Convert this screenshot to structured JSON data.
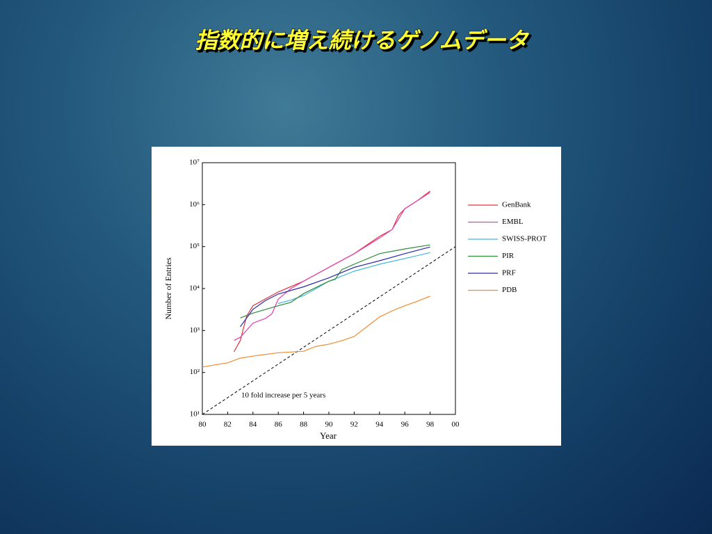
{
  "slide_title": "指数的に増え続けるゲノムデータ",
  "chart_data": {
    "type": "line",
    "x_label": "Year",
    "y_label": "Number of Entries",
    "log_y": true,
    "xlim": [
      80,
      100
    ],
    "xticks": [
      80,
      82,
      84,
      86,
      88,
      90,
      92,
      94,
      96,
      98,
      {
        "value": 100,
        "label": "00"
      }
    ],
    "ylim": [
      10,
      10000000
    ],
    "yticks": [
      {
        "value": 10,
        "label": "10¹"
      },
      {
        "value": 100,
        "label": "10²"
      },
      {
        "value": 1000,
        "label": "10³"
      },
      {
        "value": 10000,
        "label": "10⁴"
      },
      {
        "value": 100000,
        "label": "10⁵"
      },
      {
        "value": 1000000,
        "label": "10⁶"
      },
      {
        "value": 10000000,
        "label": "10⁷"
      }
    ],
    "legend": "right",
    "series": [
      {
        "name": "GenBank",
        "color": "#e0303a",
        "x": [
          82.5,
          83,
          83.5,
          84,
          86,
          88,
          90,
          92,
          94,
          95,
          95.5,
          96,
          97,
          98
        ],
        "values": [
          310,
          580,
          2200,
          3900,
          8300,
          15000,
          32000,
          68000,
          175000,
          255000,
          550000,
          800000,
          1250000,
          2100000
        ]
      },
      {
        "name": "EMBL",
        "color": "#e040b0",
        "x": [
          82.5,
          83,
          84,
          85,
          85.5,
          86,
          87,
          88,
          90,
          92,
          94,
          95,
          96,
          98
        ],
        "values": [
          580,
          690,
          1500,
          1950,
          2500,
          5600,
          10000,
          15000,
          32000,
          68000,
          160000,
          255000,
          800000,
          1950000
        ]
      },
      {
        "name": "SWISS-PROT",
        "color": "#40b8e0",
        "x": [
          86,
          87,
          88,
          89,
          90,
          92,
          94,
          96,
          98
        ],
        "values": [
          4400,
          5300,
          6800,
          10000,
          15000,
          26000,
          38000,
          52000,
          72000
        ]
      },
      {
        "name": "PIR",
        "color": "#2e8b3a",
        "x": [
          83,
          84,
          86,
          87,
          88,
          90,
          90.5,
          91,
          92,
          94,
          96,
          98
        ],
        "values": [
          2000,
          2600,
          3900,
          4700,
          7600,
          15000,
          16600,
          28000,
          38000,
          68000,
          88000,
          110000
        ]
      },
      {
        "name": "PRF",
        "color": "#2a2aa8",
        "x": [
          83,
          84,
          85,
          86,
          88,
          90,
          92,
          94,
          96,
          98
        ],
        "values": [
          1230,
          3200,
          5200,
          7400,
          11000,
          18000,
          32000,
          46000,
          68000,
          98000
        ]
      },
      {
        "name": "PDB",
        "color": "#f08a30",
        "x": [
          80,
          82,
          83,
          84,
          86,
          88,
          89,
          90,
          91,
          92,
          93,
          94,
          95,
          96,
          97,
          98
        ],
        "values": [
          135,
          170,
          220,
          245,
          295,
          320,
          420,
          470,
          570,
          720,
          1230,
          2100,
          2950,
          3900,
          5000,
          6600
        ]
      }
    ],
    "reference_line": {
      "x": [
        80,
        100
      ],
      "values": [
        10,
        100000
      ],
      "color": "#000000"
    },
    "annotation": "10 fold increase per 5 years"
  }
}
